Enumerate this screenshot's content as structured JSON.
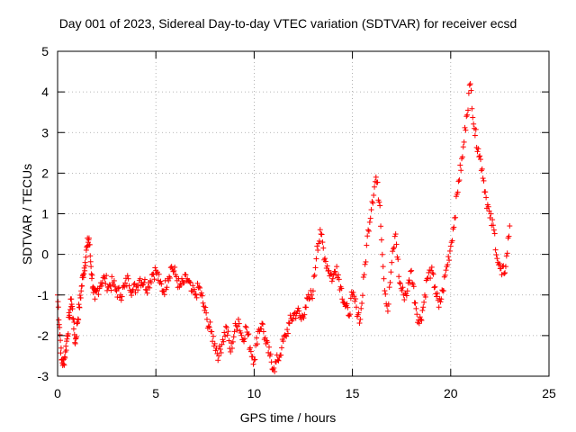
{
  "chart_data": {
    "type": "scatter",
    "title": "Day 001 of 2023, Sidereal Day-to-day VTEC variation (SDTVAR) for receiver ecsd",
    "xlabel": "GPS time / hours",
    "ylabel": "SDTVAR / TECUs",
    "xlim": [
      0,
      25
    ],
    "ylim": [
      -3,
      5
    ],
    "xticks": [
      0,
      5,
      10,
      15,
      20,
      25
    ],
    "yticks": [
      -3,
      -2,
      -1,
      0,
      1,
      2,
      3,
      4,
      5
    ],
    "grid": true,
    "marker": "+",
    "series": [
      {
        "name": "ecsd",
        "color": "#ff0000",
        "x": [
          0.0,
          0.1,
          0.2,
          0.3,
          0.4,
          0.5,
          0.6,
          0.7,
          0.8,
          0.9,
          1.0,
          1.1,
          1.2,
          1.3,
          1.4,
          1.5,
          1.6,
          1.7,
          1.8,
          1.9,
          2.0,
          2.2,
          2.4,
          2.6,
          2.8,
          3.0,
          3.2,
          3.4,
          3.6,
          3.8,
          4.0,
          4.2,
          4.4,
          4.6,
          4.8,
          5.0,
          5.2,
          5.4,
          5.6,
          5.8,
          6.0,
          6.2,
          6.4,
          6.6,
          6.8,
          7.0,
          7.2,
          7.4,
          7.6,
          7.8,
          8.0,
          8.2,
          8.4,
          8.6,
          8.8,
          9.0,
          9.2,
          9.4,
          9.6,
          9.8,
          10.0,
          10.2,
          10.4,
          10.6,
          10.8,
          11.0,
          11.2,
          11.4,
          11.6,
          11.8,
          12.0,
          12.2,
          12.4,
          12.6,
          12.8,
          13.0,
          13.2,
          13.4,
          13.6,
          13.8,
          14.0,
          14.2,
          14.4,
          14.6,
          14.8,
          15.0,
          15.2,
          15.4,
          15.6,
          15.8,
          16.0,
          16.2,
          16.4,
          16.6,
          16.8,
          17.0,
          17.2,
          17.4,
          17.6,
          17.8,
          18.0,
          18.2,
          18.4,
          18.6,
          18.8,
          19.0,
          19.2,
          19.4,
          19.6,
          19.8,
          20.0,
          20.2,
          20.4,
          20.6,
          20.8,
          21.0,
          21.2,
          21.4,
          21.6,
          21.8,
          22.0,
          22.2,
          22.4,
          22.6,
          22.8,
          23.0
        ],
        "y": [
          -1.0,
          -1.8,
          -2.6,
          -2.7,
          -2.4,
          -2.0,
          -1.5,
          -1.1,
          -1.6,
          -2.2,
          -1.7,
          -1.3,
          -0.9,
          -0.5,
          -0.2,
          0.2,
          0.4,
          -0.3,
          -0.8,
          -1.1,
          -0.9,
          -0.7,
          -0.6,
          -0.8,
          -0.7,
          -0.9,
          -1.0,
          -0.8,
          -0.6,
          -0.9,
          -0.8,
          -0.6,
          -0.7,
          -0.8,
          -0.5,
          -0.4,
          -0.7,
          -0.9,
          -0.6,
          -0.3,
          -0.5,
          -0.8,
          -0.7,
          -0.6,
          -0.9,
          -1.0,
          -0.8,
          -1.2,
          -1.6,
          -1.9,
          -2.2,
          -2.5,
          -2.1,
          -1.8,
          -2.4,
          -1.9,
          -1.6,
          -2.1,
          -1.8,
          -2.3,
          -2.6,
          -1.9,
          -1.7,
          -2.2,
          -2.5,
          -2.8,
          -2.6,
          -2.3,
          -2.0,
          -1.7,
          -1.5,
          -1.4,
          -1.6,
          -1.3,
          -1.1,
          -0.9,
          0.2,
          0.5,
          -0.1,
          -0.4,
          -0.6,
          -0.3,
          -0.8,
          -1.2,
          -1.5,
          -1.0,
          -1.3,
          -1.6,
          -0.5,
          0.6,
          1.3,
          1.9,
          1.2,
          -0.6,
          -1.4,
          -0.2,
          0.5,
          -0.7,
          -1.0,
          -0.9,
          -0.4,
          -1.2,
          -1.7,
          -1.3,
          -0.6,
          -0.4,
          -0.8,
          -1.3,
          -0.9,
          -0.3,
          0.2,
          0.9,
          1.8,
          2.4,
          3.4,
          4.2,
          3.1,
          2.6,
          2.1,
          1.4,
          0.9,
          0.6,
          -0.2,
          -0.5,
          -0.3,
          0.7
        ],
        "note": "Dense scatter of '+' markers; values are representative samples read along the visible traces."
      }
    ]
  }
}
